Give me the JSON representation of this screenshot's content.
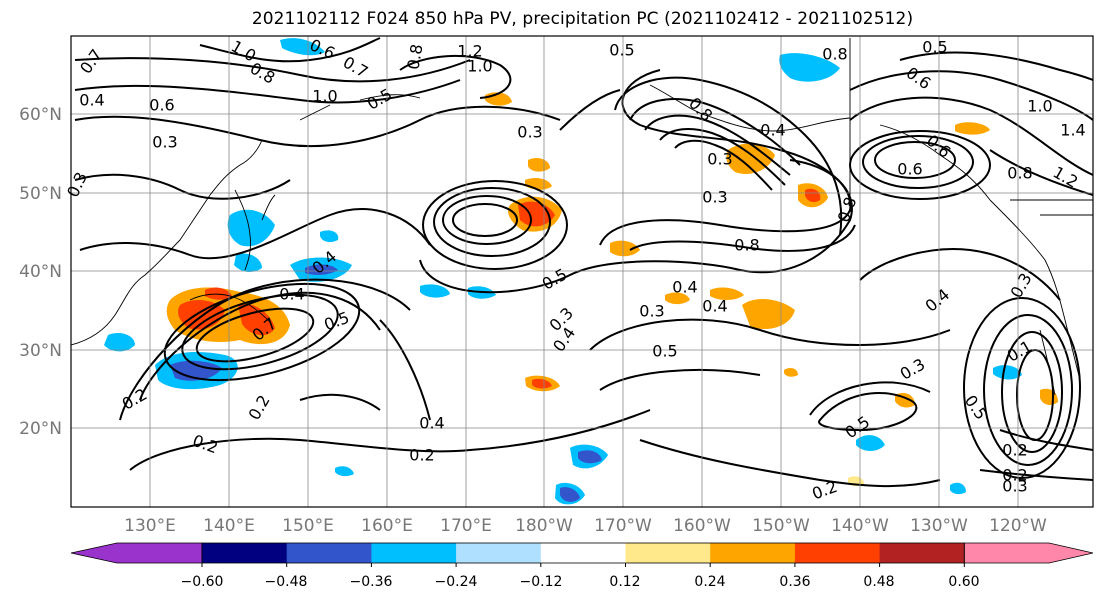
{
  "title": "2021102112 F024 850 hPa PV, precipitation PC (2021102412 - 2021102512)",
  "map": {
    "lat_labels": [
      "60°N",
      "50°N",
      "40°N",
      "30°N",
      "20°N"
    ],
    "lon_labels": [
      "130°E",
      "140°E",
      "150°E",
      "160°E",
      "170°E",
      "180°W",
      "170°W",
      "160°W",
      "150°W",
      "140°W",
      "130°W",
      "120°W"
    ],
    "contour_labels": [
      {
        "text": "0.7"
      },
      {
        "text": "1.0"
      },
      {
        "text": "0.8"
      },
      {
        "text": "0.6"
      },
      {
        "text": "0.7"
      },
      {
        "text": "0.8"
      },
      {
        "text": "1.2"
      },
      {
        "text": "1.0"
      },
      {
        "text": "0.5"
      },
      {
        "text": "0.8"
      },
      {
        "text": "0.5"
      },
      {
        "text": "0.4"
      },
      {
        "text": "1.0"
      },
      {
        "text": "0.6"
      },
      {
        "text": "0.3"
      },
      {
        "text": "0.3"
      },
      {
        "text": "0.5"
      },
      {
        "text": "0.8"
      },
      {
        "text": "0.4"
      },
      {
        "text": "0.3"
      },
      {
        "text": "1.0"
      },
      {
        "text": "1.4"
      },
      {
        "text": "0.6"
      },
      {
        "text": "1.2"
      },
      {
        "text": "0.6"
      },
      {
        "text": "0.6"
      },
      {
        "text": "0.8"
      },
      {
        "text": "0.8"
      },
      {
        "text": "0.3"
      },
      {
        "text": "0.8"
      },
      {
        "text": "0.5"
      },
      {
        "text": "0.4"
      },
      {
        "text": "0.4"
      },
      {
        "text": "0.4"
      },
      {
        "text": "0.3"
      },
      {
        "text": "0.4"
      },
      {
        "text": "0.3"
      },
      {
        "text": "0.4"
      },
      {
        "text": "0.5"
      },
      {
        "text": "0.7"
      },
      {
        "text": "0.5"
      },
      {
        "text": "0.2"
      },
      {
        "text": "0.2"
      },
      {
        "text": "0.2"
      },
      {
        "text": "0.4"
      },
      {
        "text": "0.2"
      },
      {
        "text": "0.4"
      },
      {
        "text": "0.5"
      },
      {
        "text": "0.3"
      },
      {
        "text": "0.3"
      },
      {
        "text": "0.5"
      },
      {
        "text": "0.2"
      },
      {
        "text": "0.2"
      },
      {
        "text": "0.3"
      },
      {
        "text": "0.2"
      },
      {
        "text": "0.1"
      },
      {
        "text": "0.3"
      }
    ]
  },
  "colorbar": {
    "ticks": [
      "−0.60",
      "−0.48",
      "−0.36",
      "−0.24",
      "−0.12",
      "0.12",
      "0.24",
      "0.36",
      "0.48",
      "0.60"
    ],
    "colors": [
      "#9933cc",
      "#000080",
      "#3355cc",
      "#00bfff",
      "#b0e0ff",
      "#ffffff",
      "#ffe98a",
      "#ffa500",
      "#ff4000",
      "#b22222",
      "#ff88aa"
    ]
  }
}
